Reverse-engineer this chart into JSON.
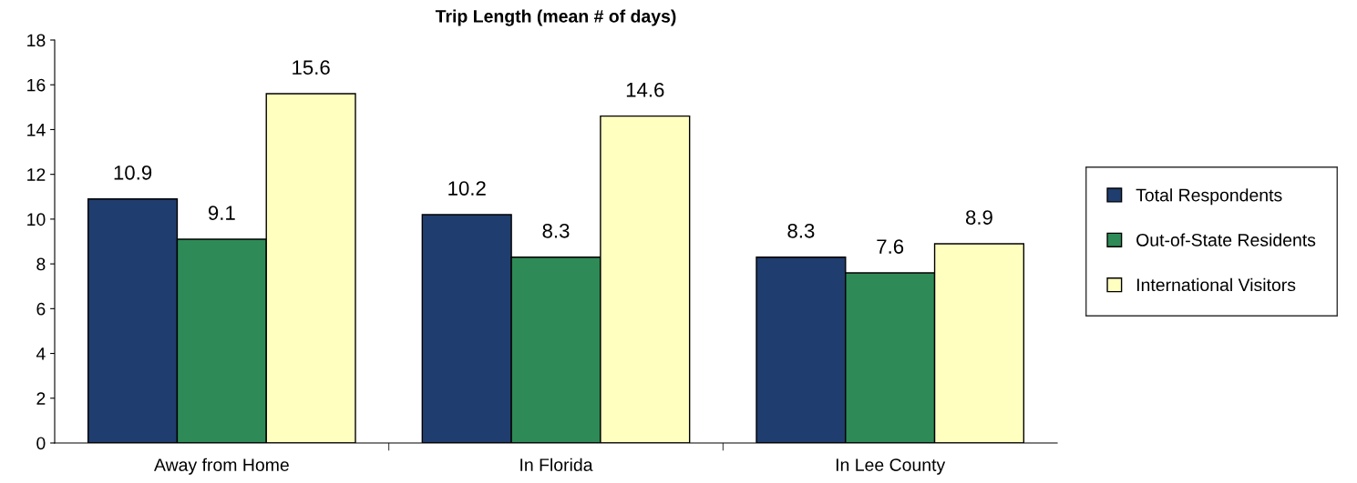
{
  "chart_data": {
    "type": "bar",
    "title": "Trip Length (mean # of days)",
    "categories": [
      "Away from Home",
      "In Florida",
      "In Lee County"
    ],
    "series": [
      {
        "name": "Total Respondents",
        "color": "#1f3d6e",
        "values": [
          10.9,
          10.2,
          8.3
        ]
      },
      {
        "name": "Out-of-State Residents",
        "color": "#2e8b57",
        "values": [
          9.1,
          8.3,
          7.6
        ]
      },
      {
        "name": "International Visitors",
        "color": "#ffffc0",
        "values": [
          15.6,
          14.6,
          8.9
        ]
      }
    ],
    "ylim": [
      0,
      18
    ],
    "yticks": [
      0,
      2,
      4,
      6,
      8,
      10,
      12,
      14,
      16,
      18
    ],
    "data_labels": true,
    "grid": false,
    "legend": "right"
  }
}
